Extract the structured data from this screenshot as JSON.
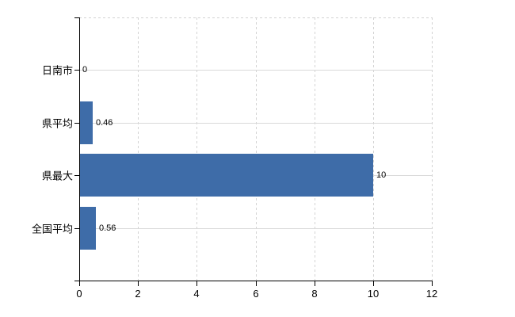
{
  "chart_data": {
    "type": "bar",
    "orientation": "horizontal",
    "title": "",
    "xlabel": "",
    "ylabel": "",
    "categories": [
      "日南市",
      "県平均",
      "県最大",
      "全国平均"
    ],
    "values": [
      0,
      0.46,
      10,
      0.56
    ],
    "value_labels": [
      "0",
      "0.46",
      "10",
      "0.56"
    ],
    "xlim": [
      0,
      12
    ],
    "x_ticks": [
      0,
      2,
      4,
      6,
      8,
      10,
      12
    ],
    "x_tick_labels": [
      "0",
      "2",
      "4",
      "6",
      "8",
      "10",
      "12"
    ],
    "grid": true,
    "legend": "none",
    "colors": {
      "bar": "#3e6ca8",
      "axis": "#000000",
      "hgrid": "#d9d9d9",
      "vgrid": "#d3d3d3",
      "text": "#000000",
      "background": "#ffffff"
    }
  }
}
